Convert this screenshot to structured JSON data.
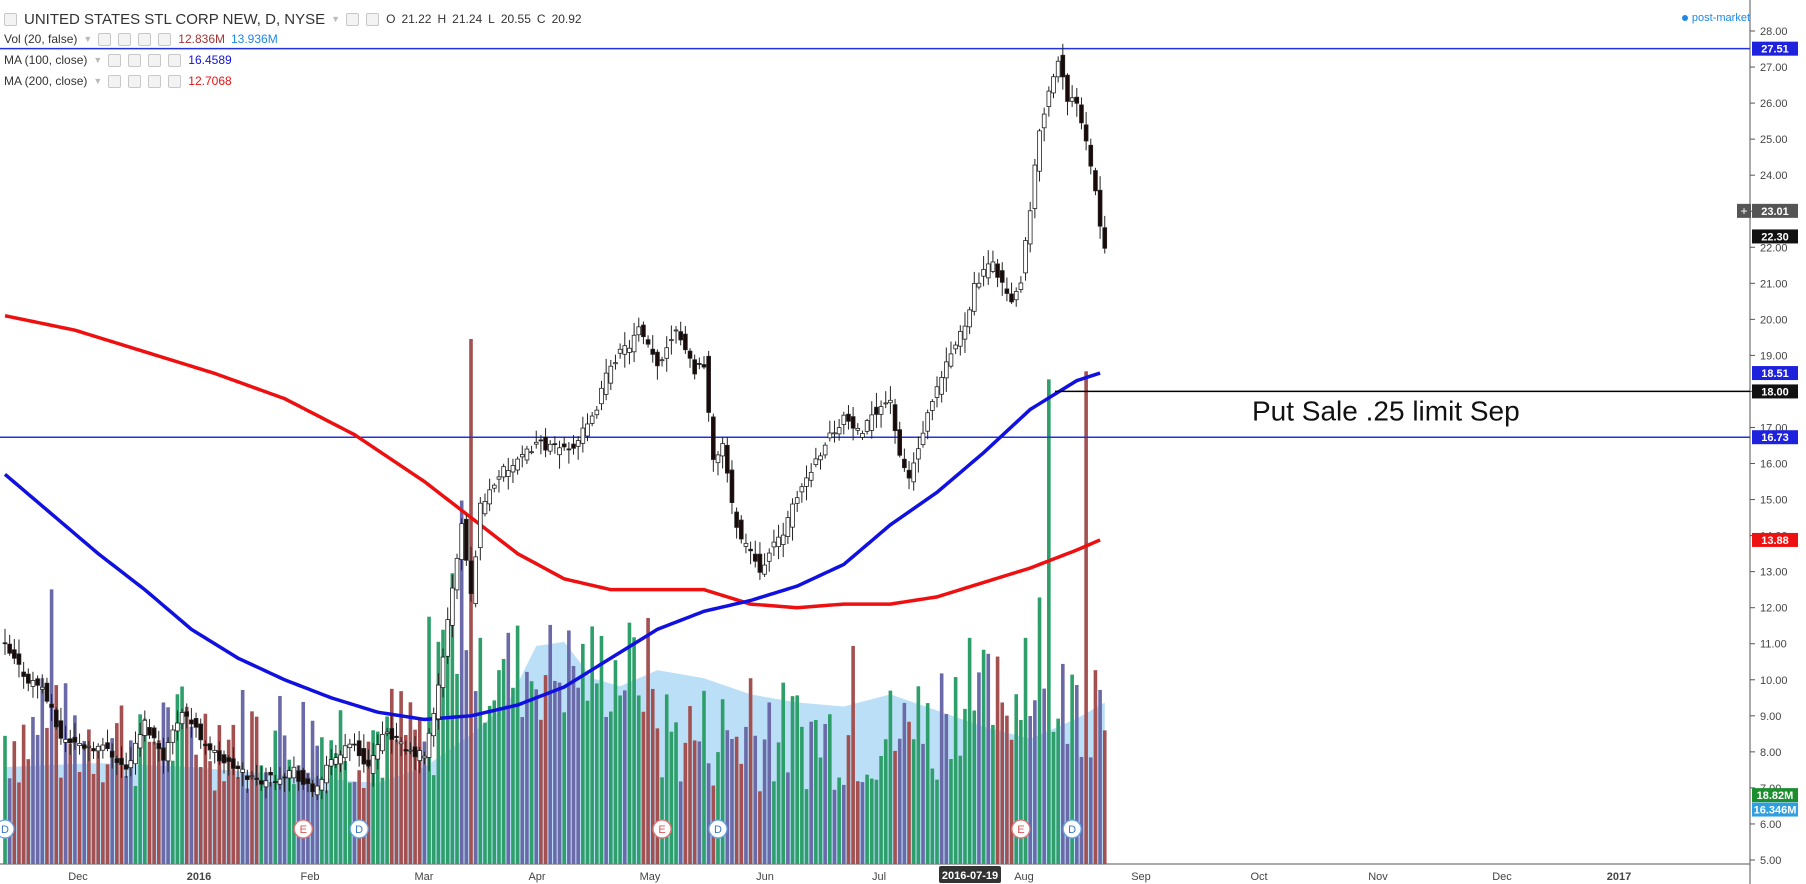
{
  "legend": {
    "symbol": "UNITED STATES STL CORP NEW, D, NYSE",
    "ohlc": {
      "o_label": "O",
      "o": "21.22",
      "h_label": "H",
      "h": "21.24",
      "l_label": "L",
      "l": "20.55",
      "c_label": "C",
      "c": "20.92"
    },
    "vol_label": "Vol (20, false)",
    "vol_value": "12.836M",
    "vol_ma_value": "13.936M",
    "ma100_label": "MA (100, close)",
    "ma100_value": "16.4589",
    "ma200_label": "MA (200, close)",
    "ma200_value": "12.7068",
    "post_market": "post-market"
  },
  "colors": {
    "ma100": "#1010e0",
    "ma200": "#ee1010",
    "hline": "#2233dd",
    "candle_up_fill": "#ffffff",
    "candle_down_fill": "#1a0a0a",
    "vol_up": "#2e9f6a",
    "vol_down": "#a35050",
    "vol_mid": "#6a6aa8",
    "vol_ma_area": "#9fd2f5"
  },
  "chart_data": {
    "type": "candlestick",
    "ylim": [
      5,
      28
    ],
    "y_ticks": [
      "5.00",
      "6.00",
      "7.00",
      "8.00",
      "9.00",
      "10.00",
      "11.00",
      "12.00",
      "13.00",
      "14.00",
      "15.00",
      "16.00",
      "17.00",
      "18.00",
      "19.00",
      "20.00",
      "21.00",
      "22.00",
      "23.00",
      "24.00",
      "25.00",
      "26.00",
      "27.00",
      "28.00"
    ],
    "x_labels": [
      "Dec",
      "2016",
      "Feb",
      "Mar",
      "Apr",
      "May",
      "Jun",
      "Jul",
      "Aug",
      "Sep",
      "Oct",
      "Nov",
      "Dec",
      "2017"
    ],
    "highlight_date": "2016-07-19",
    "hlines": [
      27.51,
      16.73
    ],
    "annotation": {
      "text": "Put Sale .25 limit Sep",
      "price": 18.0
    },
    "price_labels": [
      {
        "text": "27.51",
        "price": 27.51,
        "bg": "#1e22dd"
      },
      {
        "text": "23.01",
        "price": 23.01,
        "bg": "#555555"
      },
      {
        "text": "22.30",
        "price": 22.3,
        "bg": "#111111"
      },
      {
        "text": "18.51",
        "price": 18.51,
        "bg": "#1e22dd"
      },
      {
        "text": "18.00",
        "price": 18.0,
        "bg": "#111111"
      },
      {
        "text": "16.73",
        "price": 16.73,
        "bg": "#1e22dd"
      },
      {
        "text": "13.88",
        "price": 13.88,
        "bg": "#ee1111"
      },
      {
        "text": "18.82M",
        "price": 6.8,
        "bg": "#1b8e2e"
      },
      {
        "text": "16.346M",
        "price": 6.4,
        "bg": "#2f9fe0"
      }
    ],
    "events": [
      {
        "label": "D",
        "day": 0
      },
      {
        "label": "E",
        "day": 64
      },
      {
        "label": "D",
        "day": 76
      },
      {
        "label": "E",
        "day": 141
      },
      {
        "label": "D",
        "day": 153
      },
      {
        "label": "E",
        "day": 218
      },
      {
        "label": "D",
        "day": 229
      }
    ],
    "ma200": [
      [
        0,
        20.1
      ],
      [
        15,
        19.7
      ],
      [
        30,
        19.1
      ],
      [
        45,
        18.5
      ],
      [
        60,
        17.8
      ],
      [
        75,
        16.8
      ],
      [
        90,
        15.5
      ],
      [
        100,
        14.5
      ],
      [
        110,
        13.5
      ],
      [
        120,
        12.8
      ],
      [
        130,
        12.5
      ],
      [
        140,
        12.5
      ],
      [
        150,
        12.5
      ],
      [
        160,
        12.1
      ],
      [
        170,
        12.0
      ],
      [
        180,
        12.1
      ],
      [
        190,
        12.1
      ],
      [
        200,
        12.3
      ],
      [
        210,
        12.7
      ],
      [
        220,
        13.1
      ],
      [
        230,
        13.6
      ],
      [
        235,
        13.88
      ]
    ],
    "ma100": [
      [
        0,
        15.7
      ],
      [
        10,
        14.6
      ],
      [
        20,
        13.5
      ],
      [
        30,
        12.5
      ],
      [
        40,
        11.4
      ],
      [
        50,
        10.6
      ],
      [
        60,
        10.0
      ],
      [
        70,
        9.5
      ],
      [
        80,
        9.1
      ],
      [
        90,
        8.9
      ],
      [
        100,
        9.0
      ],
      [
        110,
        9.3
      ],
      [
        120,
        9.8
      ],
      [
        130,
        10.6
      ],
      [
        140,
        11.4
      ],
      [
        150,
        11.9
      ],
      [
        160,
        12.2
      ],
      [
        170,
        12.6
      ],
      [
        180,
        13.2
      ],
      [
        190,
        14.3
      ],
      [
        200,
        15.2
      ],
      [
        210,
        16.3
      ],
      [
        220,
        17.5
      ],
      [
        230,
        18.3
      ],
      [
        235,
        18.51
      ]
    ],
    "price_path": [
      [
        0,
        10.9
      ],
      [
        5,
        10.0
      ],
      [
        8,
        9.8
      ],
      [
        12,
        8.4
      ],
      [
        16,
        8.2
      ],
      [
        22,
        8.1
      ],
      [
        26,
        7.5
      ],
      [
        30,
        8.8
      ],
      [
        34,
        7.9
      ],
      [
        38,
        9.2
      ],
      [
        42,
        8.4
      ],
      [
        46,
        7.8
      ],
      [
        50,
        7.5
      ],
      [
        54,
        7.2
      ],
      [
        58,
        7.3
      ],
      [
        62,
        7.5
      ],
      [
        64,
        7.1
      ],
      [
        66,
        6.9
      ],
      [
        70,
        7.7
      ],
      [
        74,
        8.3
      ],
      [
        78,
        7.6
      ],
      [
        82,
        8.6
      ],
      [
        86,
        8.0
      ],
      [
        90,
        7.9
      ],
      [
        92,
        9.0
      ],
      [
        94,
        10.7
      ],
      [
        96,
        12.5
      ],
      [
        98,
        14.3
      ],
      [
        100,
        12.3
      ],
      [
        102,
        14.8
      ],
      [
        106,
        15.7
      ],
      [
        110,
        16.0
      ],
      [
        114,
        16.6
      ],
      [
        118,
        16.4
      ],
      [
        122,
        16.5
      ],
      [
        126,
        17.2
      ],
      [
        130,
        18.8
      ],
      [
        134,
        19.3
      ],
      [
        136,
        19.7
      ],
      [
        140,
        18.7
      ],
      [
        144,
        19.8
      ],
      [
        148,
        18.6
      ],
      [
        150,
        18.8
      ],
      [
        152,
        16.0
      ],
      [
        154,
        16.6
      ],
      [
        156,
        14.8
      ],
      [
        158,
        13.9
      ],
      [
        160,
        13.6
      ],
      [
        162,
        13.1
      ],
      [
        164,
        13.5
      ],
      [
        166,
        13.9
      ],
      [
        168,
        14.4
      ],
      [
        170,
        15.1
      ],
      [
        172,
        15.6
      ],
      [
        176,
        16.6
      ],
      [
        180,
        17.3
      ],
      [
        184,
        16.7
      ],
      [
        186,
        17.4
      ],
      [
        190,
        17.8
      ],
      [
        192,
        16.1
      ],
      [
        194,
        15.6
      ],
      [
        196,
        16.4
      ],
      [
        198,
        17.3
      ],
      [
        202,
        18.7
      ],
      [
        206,
        19.9
      ],
      [
        208,
        20.9
      ],
      [
        212,
        21.6
      ],
      [
        214,
        21.0
      ],
      [
        216,
        20.4
      ],
      [
        218,
        21.1
      ],
      [
        220,
        23.0
      ],
      [
        222,
        25.3
      ],
      [
        224,
        26.3
      ],
      [
        226,
        27.3
      ],
      [
        228,
        26.0
      ],
      [
        230,
        26.1
      ],
      [
        232,
        25.0
      ],
      [
        234,
        23.6
      ],
      [
        235,
        22.7
      ],
      [
        236,
        22.1
      ]
    ],
    "volume_ylim": [
      0,
      9
    ],
    "volume_ma": [
      [
        0,
        1.2
      ],
      [
        20,
        1.25
      ],
      [
        40,
        1.2
      ],
      [
        60,
        1.1
      ],
      [
        80,
        1.0
      ],
      [
        90,
        1.2
      ],
      [
        100,
        1.6
      ],
      [
        108,
        2.0
      ],
      [
        114,
        2.7
      ],
      [
        120,
        2.75
      ],
      [
        126,
        2.3
      ],
      [
        132,
        2.2
      ],
      [
        140,
        2.4
      ],
      [
        150,
        2.3
      ],
      [
        160,
        2.1
      ],
      [
        170,
        2.0
      ],
      [
        180,
        1.95
      ],
      [
        190,
        2.1
      ],
      [
        200,
        1.9
      ],
      [
        210,
        1.7
      ],
      [
        220,
        1.55
      ],
      [
        230,
        1.8
      ],
      [
        236,
        2.0
      ]
    ]
  }
}
